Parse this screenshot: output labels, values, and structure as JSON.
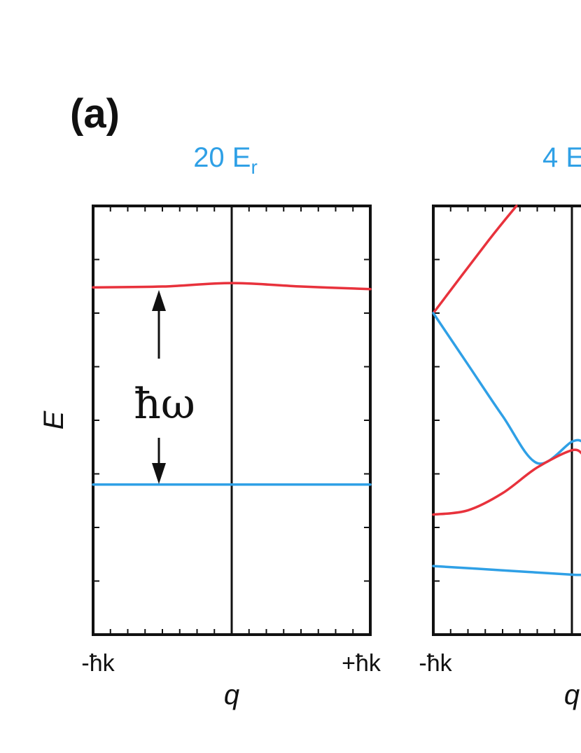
{
  "panel_label": "(a)",
  "colors": {
    "band1": "#2fa0e6",
    "band2": "#e8323c",
    "axis": "#111111",
    "title": "#2fa0e6"
  },
  "chart_data": [
    {
      "type": "line",
      "title": "20 E",
      "title_sub": "r",
      "xlabel": "q",
      "ylabel": "E",
      "x_ticks": [
        "-ħk",
        "+ħk"
      ],
      "xlim": [
        -1,
        1
      ],
      "ylim": [
        0,
        1
      ],
      "grid": false,
      "annotation": "ħω",
      "series": [
        {
          "color": "#e8323c",
          "x": [
            -1,
            -0.5,
            0,
            0.5,
            1
          ],
          "y": [
            0.81,
            0.812,
            0.82,
            0.812,
            0.806
          ]
        },
        {
          "color": "#2fa0e6",
          "x": [
            -1,
            1
          ],
          "y": [
            0.35,
            0.35
          ]
        }
      ]
    },
    {
      "type": "line",
      "title": "4 E",
      "xlabel": "q",
      "x_ticks": [
        "-ħk"
      ],
      "xlim": [
        -1,
        0.08
      ],
      "ylim": [
        0,
        1
      ],
      "grid": false,
      "series": [
        {
          "color": "#e8323c",
          "x": [
            -1,
            -0.6,
            -0.4
          ],
          "y": [
            0.75,
            0.92,
            1.0
          ]
        },
        {
          "color": "#2fa0e6",
          "x": [
            -1,
            -0.75,
            -0.5,
            -0.25,
            0,
            0.08
          ],
          "y": [
            0.75,
            0.63,
            0.51,
            0.4,
            0.45,
            0.45
          ]
        },
        {
          "color": "#e8323c",
          "x": [
            -1,
            -0.75,
            -0.5,
            -0.25,
            0,
            0.08
          ],
          "y": [
            0.28,
            0.29,
            0.33,
            0.39,
            0.43,
            0.42
          ]
        },
        {
          "color": "#2fa0e6",
          "x": [
            -1,
            -0.5,
            0,
            0.08
          ],
          "y": [
            0.16,
            0.15,
            0.14,
            0.14
          ]
        }
      ]
    }
  ]
}
